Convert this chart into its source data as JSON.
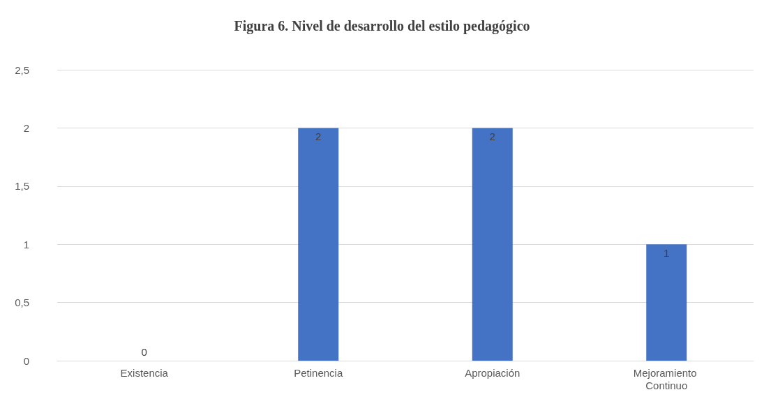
{
  "chart_data": {
    "type": "bar",
    "title": "Figura 6. Nivel de desarrollo del estilo pedagógico",
    "categories": [
      "Existencia",
      "Petinencia",
      "Apropiación",
      "Mejoramiento Continuo"
    ],
    "values": [
      0,
      2,
      2,
      1
    ],
    "color": "#4472c4",
    "ylim": [
      0,
      2.5
    ],
    "yticks": [
      0,
      {
        "value": 0.5,
        "label": "0,5"
      },
      1,
      {
        "value": 1.5,
        "label": "1,5"
      },
      2,
      {
        "value": 2.5,
        "label": "2,5"
      }
    ],
    "grid": "y",
    "data_labels": true
  }
}
